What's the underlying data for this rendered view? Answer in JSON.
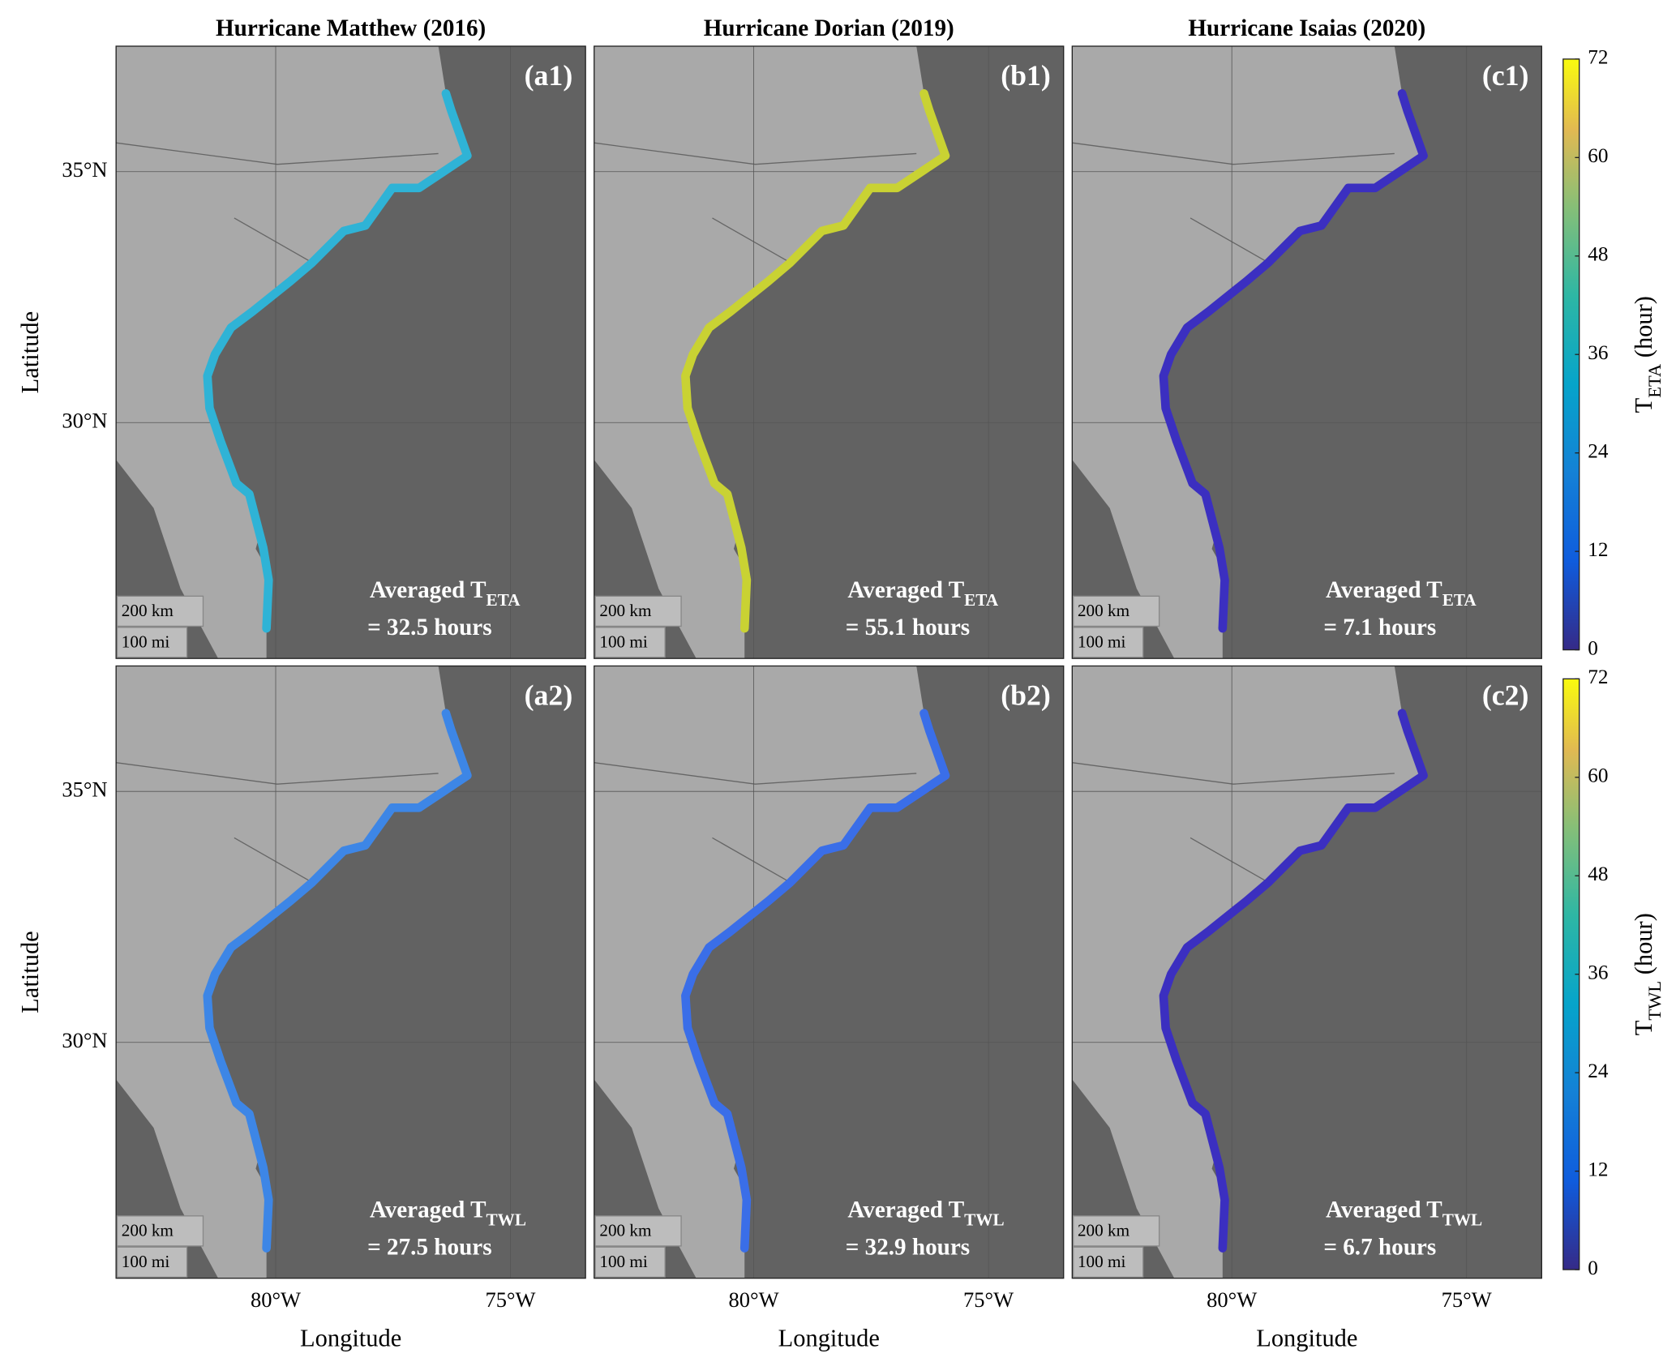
{
  "figure": {
    "y_label": "Latitude",
    "x_label": "Longitude",
    "latlim": [
      25.3,
      37.5
    ],
    "lonlim": [
      -83.4,
      -73.4
    ],
    "lat_ticks": [
      {
        "value": 35,
        "label": "35°N"
      },
      {
        "value": 30,
        "label": "30°N"
      }
    ],
    "lon_ticks": [
      {
        "value": -80,
        "label": "80°W"
      },
      {
        "value": -75,
        "label": "75°W"
      }
    ],
    "column_titles": [
      "Hurricane Matthew (2016)",
      "Hurricane Dorian (2019)",
      "Hurricane Isaias (2020)"
    ],
    "scale_labels": [
      "200 km",
      "100 mi"
    ],
    "rows": [
      {
        "colorbar": {
          "label": "T",
          "label_subscript": "ETA",
          "label_unit": " (hour)",
          "clim": [
            0,
            72
          ],
          "ticks": [
            0,
            12,
            24,
            36,
            48,
            60,
            72
          ]
        },
        "panels": [
          {
            "label": "(a1)",
            "averaged": "Averaged T",
            "averaged_subscript": "ETA",
            "averaged_value": "= 32.5 hours",
            "color": "#2fb3d6"
          },
          {
            "label": "(b1)",
            "averaged": "Averaged T",
            "averaged_subscript": "ETA",
            "averaged_value": "= 55.1 hours",
            "color": "#c9d233"
          },
          {
            "label": "(c1)",
            "averaged": "Averaged T",
            "averaged_subscript": "ETA",
            "averaged_value": "= 7.1 hours",
            "color": "#3b2fc0"
          }
        ]
      },
      {
        "colorbar": {
          "label": "T",
          "label_subscript": "TWL",
          "label_unit": " (hour)",
          "clim": [
            0,
            72
          ],
          "ticks": [
            0,
            12,
            24,
            36,
            48,
            60,
            72
          ]
        },
        "panels": [
          {
            "label": "(a2)",
            "averaged": "Averaged T",
            "averaged_subscript": "TWL",
            "averaged_value": "= 27.5 hours",
            "color": "#3d86e6"
          },
          {
            "label": "(b2)",
            "averaged": "Averaged T",
            "averaged_subscript": "TWL",
            "averaged_value": "= 32.9 hours",
            "color": "#3a6ee8"
          },
          {
            "label": "(c2)",
            "averaged": "Averaged T",
            "averaged_subscript": "TWL",
            "averaged_value": "= 6.7 hours",
            "color": "#3b2fc0"
          }
        ]
      }
    ]
  }
}
